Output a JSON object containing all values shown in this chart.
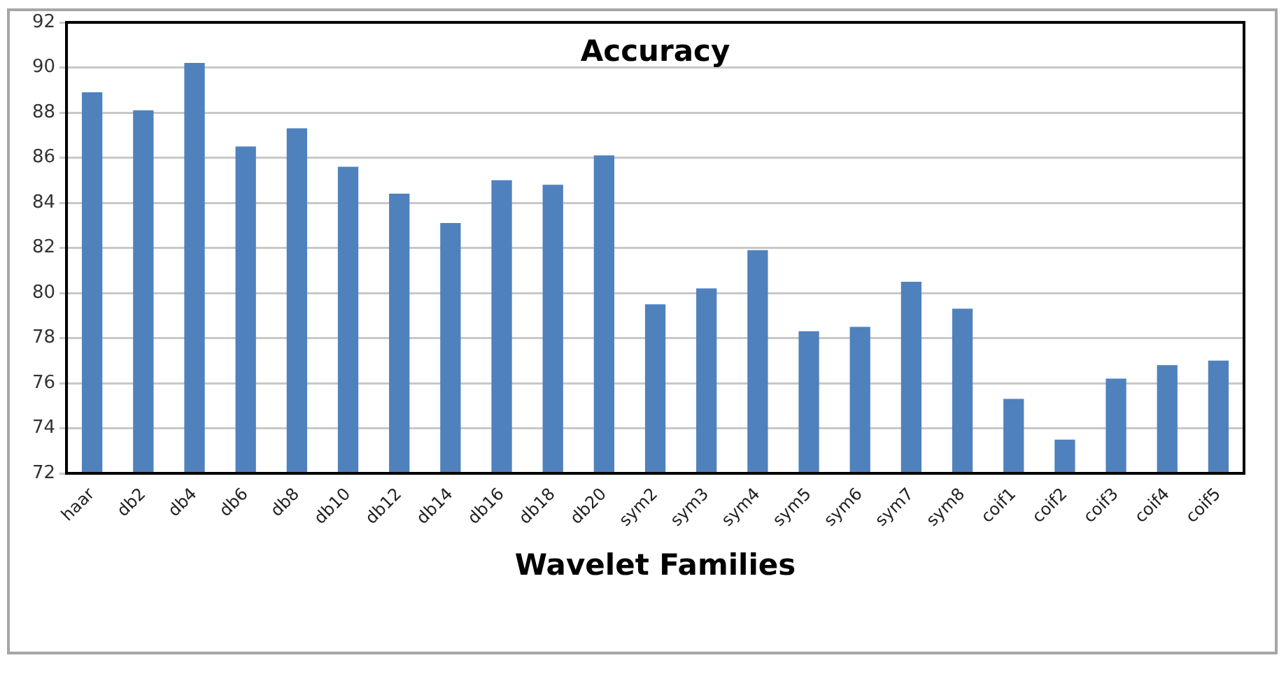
{
  "chart_data": {
    "type": "bar",
    "title": "Accuracy",
    "xlabel": "Wavelet Families",
    "categories": [
      "haar",
      "db2",
      "db4",
      "db6",
      "db8",
      "db10",
      "db12",
      "db14",
      "db16",
      "db18",
      "db20",
      "sym2",
      "sym3",
      "sym4",
      "sym5",
      "sym6",
      "sym7",
      "sym8",
      "coif1",
      "coif2",
      "coif3",
      "coif4",
      "coif5"
    ],
    "values": [
      88.9,
      88.1,
      90.2,
      86.5,
      87.3,
      85.6,
      84.4,
      83.1,
      85.0,
      84.8,
      86.1,
      79.5,
      80.2,
      81.9,
      78.3,
      78.5,
      80.5,
      79.3,
      75.3,
      73.5,
      76.2,
      76.8,
      77.0
    ],
    "color": "#4f81bd",
    "ylim": [
      72,
      92
    ],
    "yticks": [
      72,
      74,
      76,
      78,
      80,
      82,
      84,
      86,
      88,
      90,
      92
    ],
    "grid": "y",
    "legend": false
  }
}
